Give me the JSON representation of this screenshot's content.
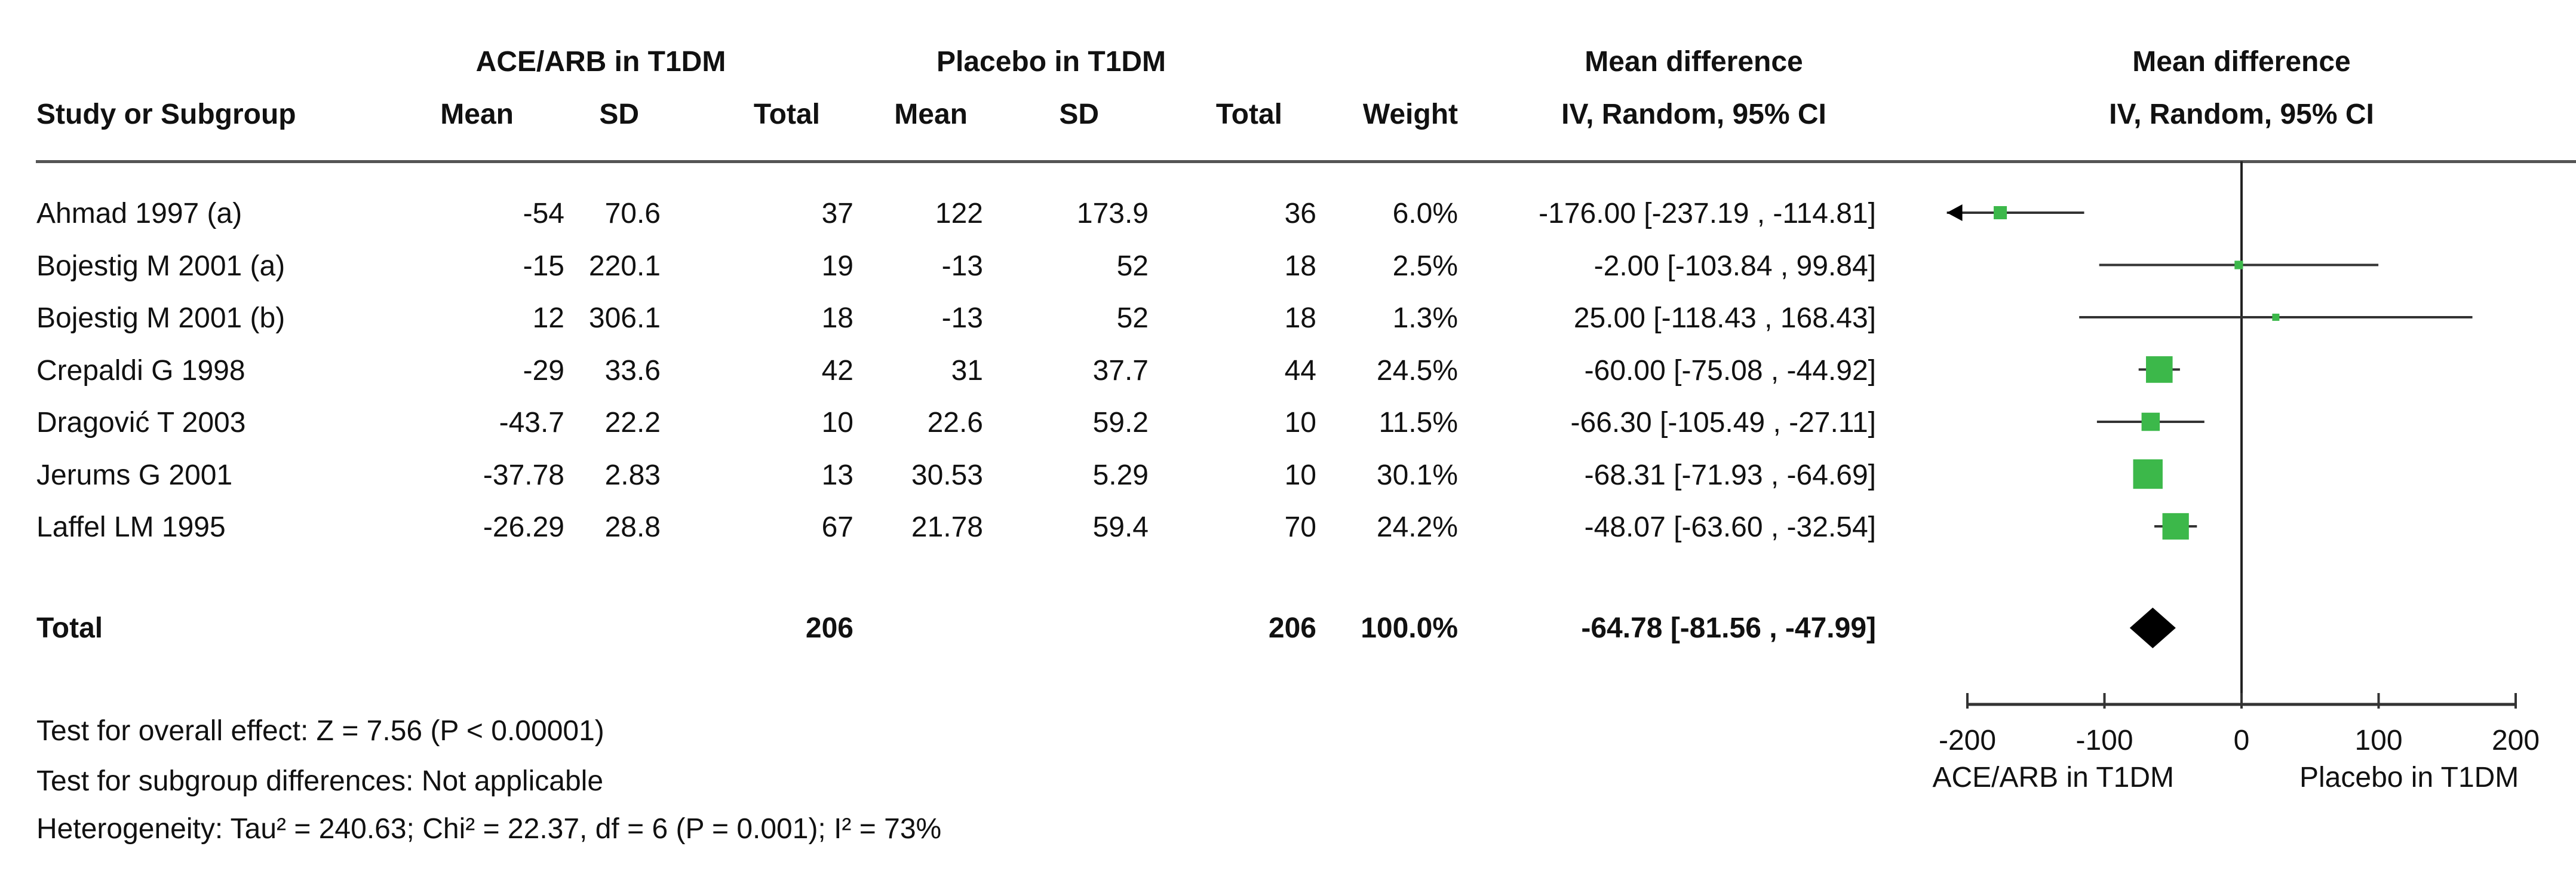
{
  "header": {
    "group1": "ACE/ARB in T1DM",
    "group2": "Placebo in T1DM",
    "study_col": "Study or Subgroup",
    "mean": "Mean",
    "sd": "SD",
    "total": "Total",
    "weight": "Weight",
    "md_title": "Mean difference",
    "md_method": "IV, Random, 95% CI",
    "plot_title": "Mean difference",
    "plot_method": "IV, Random, 95% CI"
  },
  "studies": [
    {
      "name": "Ahmad 1997 (a)",
      "m1": "-54",
      "sd1": "70.6",
      "n1": "37",
      "m2": "122",
      "sd2": "173.9",
      "n2": "36",
      "weight": "6.0%",
      "ci": "-176.00 [-237.19 , -114.81]"
    },
    {
      "name": "Bojestig M 2001 (a)",
      "m1": "-15",
      "sd1": "220.1",
      "n1": "19",
      "m2": "-13",
      "sd2": "52",
      "n2": "18",
      "weight": "2.5%",
      "ci": "-2.00 [-103.84 , 99.84]"
    },
    {
      "name": "Bojestig M 2001 (b)",
      "m1": "12",
      "sd1": "306.1",
      "n1": "18",
      "m2": "-13",
      "sd2": "52",
      "n2": "18",
      "weight": "1.3%",
      "ci": "25.00 [-118.43 , 168.43]"
    },
    {
      "name": "Crepaldi G 1998",
      "m1": "-29",
      "sd1": "33.6",
      "n1": "42",
      "m2": "31",
      "sd2": "37.7",
      "n2": "44",
      "weight": "24.5%",
      "ci": "-60.00 [-75.08 , -44.92]"
    },
    {
      "name": "Dragović T 2003",
      "m1": "-43.7",
      "sd1": "22.2",
      "n1": "10",
      "m2": "22.6",
      "sd2": "59.2",
      "n2": "10",
      "weight": "11.5%",
      "ci": "-66.30 [-105.49 , -27.11]"
    },
    {
      "name": "Jerums G 2001",
      "m1": "-37.78",
      "sd1": "2.83",
      "n1": "13",
      "m2": "30.53",
      "sd2": "5.29",
      "n2": "10",
      "weight": "30.1%",
      "ci": "-68.31 [-71.93 , -64.69]"
    },
    {
      "name": "Laffel LM 1995",
      "m1": "-26.29",
      "sd1": "28.8",
      "n1": "67",
      "m2": "21.78",
      "sd2": "59.4",
      "n2": "70",
      "weight": "24.2%",
      "ci": "-48.07 [-63.60 , -32.54]"
    }
  ],
  "total": {
    "label": "Total",
    "n1": "206",
    "n2": "206",
    "weight": "100.0%",
    "ci": "-64.78 [-81.56 , -47.99]"
  },
  "footer": {
    "overall": "Test for overall effect: Z = 7.56 (P < 0.00001)",
    "subgroup": "Test for subgroup differences: Not applicable",
    "heterogeneity": "Heterogeneity: Tau² = 240.63; Chi² = 22.37, df = 6 (P = 0.001); I² = 73%"
  },
  "chart_data": {
    "type": "forest",
    "xlim": [
      -200,
      200
    ],
    "ticks": [
      "-200",
      "-100",
      "0",
      "100",
      "200"
    ],
    "tick_values": [
      -200,
      -100,
      0,
      100,
      200
    ],
    "xlabel_left": "ACE/ARB in T1DM",
    "xlabel_right": "Placebo in T1DM",
    "points": [
      {
        "md": -176.0,
        "lo": -237.19,
        "hi": -114.81,
        "weight": 6.0
      },
      {
        "md": -2.0,
        "lo": -103.84,
        "hi": 99.84,
        "weight": 2.5
      },
      {
        "md": 25.0,
        "lo": -118.43,
        "hi": 168.43,
        "weight": 1.3
      },
      {
        "md": -60.0,
        "lo": -75.08,
        "hi": -44.92,
        "weight": 24.5
      },
      {
        "md": -66.3,
        "lo": -105.49,
        "hi": -27.11,
        "weight": 11.5
      },
      {
        "md": -68.31,
        "lo": -71.93,
        "hi": -64.69,
        "weight": 30.1
      },
      {
        "md": -48.07,
        "lo": -63.6,
        "hi": -32.54,
        "weight": 24.2
      }
    ],
    "pooled": {
      "md": -64.78,
      "lo": -81.56,
      "hi": -47.99
    },
    "colors": {
      "marker": "#3cb84a",
      "pooled": "#000000",
      "lines": "#333333"
    }
  }
}
